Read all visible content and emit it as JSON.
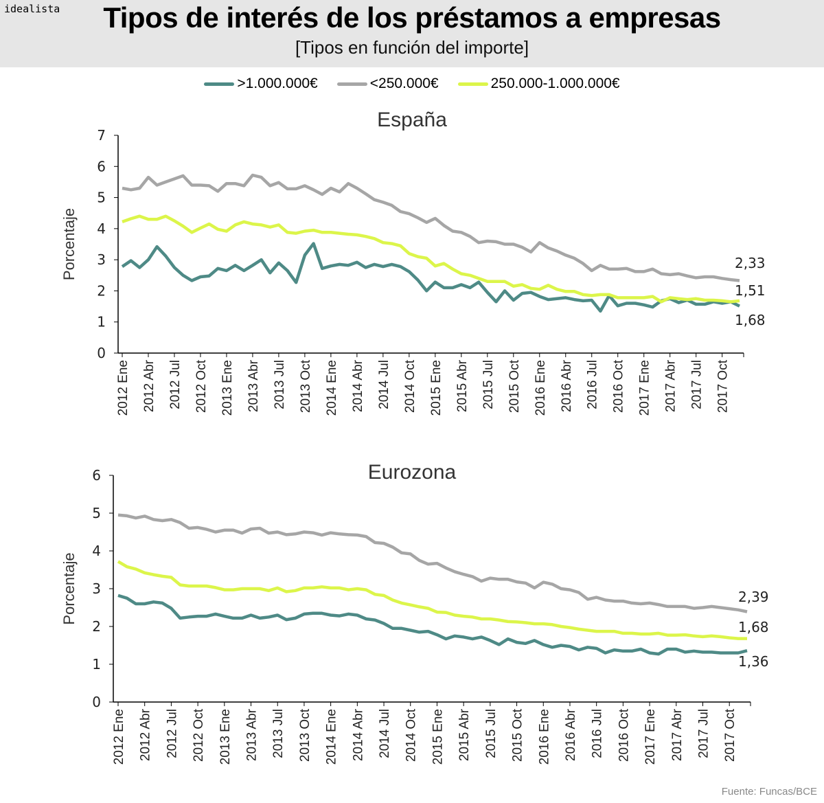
{
  "header": {
    "logo": "idealista",
    "title": "Tipos de interés de los préstamos a empresas",
    "subtitle": "[Tipos en función del importe]"
  },
  "legend": [
    {
      "label": ">1.000.000€",
      "color": "#4e8a86"
    },
    {
      "label": "<250.000€",
      "color": "#a6a6a6"
    },
    {
      "label": "250.000-1.000.000€",
      "color": "#dcf54a"
    }
  ],
  "source": "Fuente: Funcas/BCE",
  "chart_data": [
    {
      "type": "line",
      "title": "España",
      "ylabel": "Porcentaje",
      "ylim": [
        0,
        7
      ],
      "yticks": [
        0,
        1,
        2,
        3,
        4,
        5,
        6,
        7
      ],
      "xtick_labels": [
        "2012 Ene",
        "2012 Abr",
        "2012 Jul",
        "2012 Oct",
        "2013 Ene",
        "2013 Abr",
        "2013 Jul",
        "2013 Oct",
        "2014 Ene",
        "2014 Abr",
        "2014 Jul",
        "2014 Oct",
        "2015 Ene",
        "2015 Abr",
        "2015 Jul",
        "2015 Oct",
        "2016 Ene",
        "2016 Abr",
        "2016 Jul",
        "2016 Oct",
        "2017  Ene",
        "2017 Abr",
        "2017 Jul",
        "2017 Oct"
      ],
      "end_labels": [
        "2,33",
        "1,51",
        "1,68"
      ],
      "series": [
        {
          "name": ">1.000.000€",
          "color": "#4e8a86",
          "values": [
            2.78,
            2.97,
            2.75,
            3.0,
            3.42,
            3.12,
            2.75,
            2.5,
            2.33,
            2.45,
            2.48,
            2.72,
            2.65,
            2.82,
            2.65,
            2.82,
            3.0,
            2.58,
            2.9,
            2.65,
            2.27,
            3.15,
            3.52,
            2.72,
            2.8,
            2.85,
            2.82,
            2.92,
            2.75,
            2.85,
            2.78,
            2.85,
            2.78,
            2.62,
            2.35,
            2.0,
            2.28,
            2.1,
            2.1,
            2.2,
            2.1,
            2.28,
            1.95,
            1.65,
            2.0,
            1.7,
            1.92,
            1.95,
            1.82,
            1.72,
            1.75,
            1.78,
            1.72,
            1.68,
            1.7,
            1.35,
            1.85,
            1.52,
            1.6,
            1.6,
            1.55,
            1.48,
            1.68,
            1.75,
            1.62,
            1.7,
            1.57,
            1.57,
            1.65,
            1.6,
            1.65,
            1.51
          ]
        },
        {
          "name": "<250.000€",
          "color": "#a6a6a6",
          "values": [
            5.3,
            5.25,
            5.3,
            5.65,
            5.4,
            5.5,
            5.6,
            5.7,
            5.4,
            5.4,
            5.38,
            5.2,
            5.45,
            5.45,
            5.38,
            5.72,
            5.65,
            5.38,
            5.48,
            5.28,
            5.28,
            5.38,
            5.25,
            5.1,
            5.3,
            5.18,
            5.45,
            5.3,
            5.12,
            4.93,
            4.85,
            4.75,
            4.55,
            4.48,
            4.35,
            4.2,
            4.33,
            4.1,
            3.92,
            3.88,
            3.75,
            3.55,
            3.6,
            3.58,
            3.5,
            3.5,
            3.4,
            3.25,
            3.55,
            3.38,
            3.28,
            3.15,
            3.05,
            2.88,
            2.65,
            2.82,
            2.7,
            2.7,
            2.72,
            2.62,
            2.62,
            2.7,
            2.55,
            2.52,
            2.55,
            2.48,
            2.42,
            2.45,
            2.45,
            2.4,
            2.36,
            2.33
          ]
        },
        {
          "name": "250.000-1.000.000€",
          "color": "#dcf54a",
          "values": [
            4.22,
            4.32,
            4.4,
            4.3,
            4.3,
            4.4,
            4.25,
            4.08,
            3.88,
            4.02,
            4.15,
            3.98,
            3.92,
            4.12,
            4.22,
            4.15,
            4.12,
            4.05,
            4.12,
            3.88,
            3.85,
            3.92,
            3.95,
            3.88,
            3.88,
            3.85,
            3.82,
            3.8,
            3.75,
            3.68,
            3.55,
            3.52,
            3.45,
            3.2,
            3.1,
            3.05,
            2.8,
            2.88,
            2.7,
            2.55,
            2.5,
            2.4,
            2.3,
            2.3,
            2.3,
            2.15,
            2.2,
            2.08,
            2.05,
            2.18,
            2.05,
            1.98,
            1.98,
            1.88,
            1.85,
            1.88,
            1.88,
            1.78,
            1.78,
            1.78,
            1.78,
            1.82,
            1.65,
            1.78,
            1.75,
            1.72,
            1.75,
            1.7,
            1.7,
            1.68,
            1.65,
            1.68
          ]
        }
      ]
    },
    {
      "type": "line",
      "title": "Eurozona",
      "ylabel": "Porcentaje",
      "ylim": [
        0,
        6
      ],
      "yticks": [
        0,
        1,
        2,
        3,
        4,
        5,
        6
      ],
      "xtick_labels": [
        "2012 Ene",
        "2012 Abr",
        "2012 Jul",
        "2012 Oct",
        "2013 Ene",
        "2013 Abr",
        "2013 Jul",
        "2013 Oct",
        "2014 Ene",
        "2014 Abr",
        "2014 Jul",
        "2014 Oct",
        "2015 Ene",
        "2015 Abr",
        "2015 Jul",
        "2015 Oct",
        "2016 Ene",
        "2016 Abr",
        "2016 Jul",
        "2016 Oct",
        "2017 Ene",
        "2017 Abr",
        "2017 Jul",
        "2017 Oct"
      ],
      "end_labels": [
        "2,39",
        "1,68",
        "1,36"
      ],
      "series": [
        {
          "name": ">1.000.000€",
          "color": "#4e8a86",
          "values": [
            2.82,
            2.75,
            2.6,
            2.6,
            2.65,
            2.62,
            2.48,
            2.22,
            2.25,
            2.27,
            2.27,
            2.33,
            2.27,
            2.22,
            2.22,
            2.3,
            2.22,
            2.25,
            2.3,
            2.18,
            2.22,
            2.33,
            2.35,
            2.35,
            2.3,
            2.28,
            2.33,
            2.3,
            2.2,
            2.17,
            2.08,
            1.95,
            1.95,
            1.9,
            1.85,
            1.87,
            1.78,
            1.67,
            1.75,
            1.72,
            1.67,
            1.72,
            1.63,
            1.52,
            1.67,
            1.58,
            1.55,
            1.63,
            1.52,
            1.45,
            1.5,
            1.47,
            1.38,
            1.45,
            1.42,
            1.3,
            1.38,
            1.35,
            1.35,
            1.4,
            1.3,
            1.27,
            1.4,
            1.4,
            1.32,
            1.35,
            1.32,
            1.32,
            1.3,
            1.3,
            1.3,
            1.36
          ]
        },
        {
          "name": "<250.000€",
          "color": "#a6a6a6",
          "values": [
            4.95,
            4.93,
            4.87,
            4.92,
            4.83,
            4.8,
            4.83,
            4.75,
            4.6,
            4.62,
            4.57,
            4.5,
            4.55,
            4.55,
            4.47,
            4.58,
            4.6,
            4.47,
            4.5,
            4.43,
            4.45,
            4.5,
            4.48,
            4.42,
            4.48,
            4.45,
            4.43,
            4.42,
            4.38,
            4.22,
            4.2,
            4.1,
            3.95,
            3.92,
            3.75,
            3.65,
            3.67,
            3.55,
            3.45,
            3.38,
            3.32,
            3.2,
            3.28,
            3.25,
            3.25,
            3.18,
            3.15,
            3.02,
            3.17,
            3.12,
            3.0,
            2.97,
            2.9,
            2.72,
            2.77,
            2.7,
            2.67,
            2.67,
            2.62,
            2.6,
            2.62,
            2.58,
            2.53,
            2.53,
            2.53,
            2.48,
            2.5,
            2.53,
            2.5,
            2.47,
            2.44,
            2.39
          ]
        },
        {
          "name": "250.000-1.000.000€",
          "color": "#dcf54a",
          "values": [
            3.72,
            3.58,
            3.52,
            3.42,
            3.37,
            3.33,
            3.3,
            3.1,
            3.07,
            3.07,
            3.07,
            3.03,
            2.97,
            2.97,
            3.0,
            3.0,
            3.0,
            2.95,
            3.02,
            2.92,
            2.95,
            3.02,
            3.02,
            3.05,
            3.02,
            3.02,
            2.97,
            3.0,
            2.97,
            2.85,
            2.82,
            2.7,
            2.62,
            2.57,
            2.52,
            2.48,
            2.38,
            2.37,
            2.3,
            2.27,
            2.25,
            2.2,
            2.2,
            2.17,
            2.13,
            2.12,
            2.1,
            2.07,
            2.07,
            2.05,
            2.0,
            1.97,
            1.93,
            1.9,
            1.87,
            1.87,
            1.87,
            1.82,
            1.82,
            1.8,
            1.8,
            1.82,
            1.77,
            1.77,
            1.78,
            1.75,
            1.73,
            1.75,
            1.73,
            1.7,
            1.68,
            1.68
          ]
        }
      ]
    }
  ]
}
